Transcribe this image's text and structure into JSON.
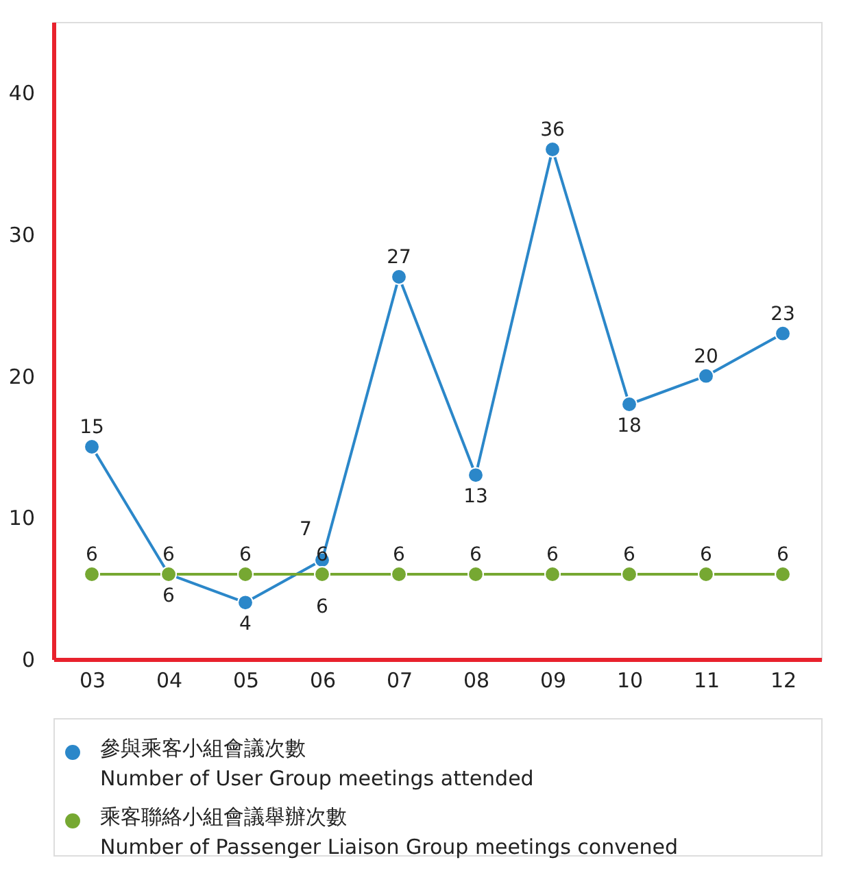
{
  "chart_data": {
    "type": "line",
    "categories": [
      "03",
      "04",
      "05",
      "06",
      "07",
      "08",
      "09",
      "10",
      "11",
      "12"
    ],
    "series": [
      {
        "name": "參與乘客小組會議次數\nNumber of User Group meetings attended",
        "color": "#2b87c9",
        "values": [
          15,
          6,
          4,
          7,
          27,
          13,
          36,
          18,
          20,
          23
        ]
      },
      {
        "name": "乘客聯絡小組會議舉辦次數\nNumber of Passenger Liaison Group meetings convened",
        "color": "#76a832",
        "values": [
          6,
          6,
          6,
          6,
          6,
          6,
          6,
          6,
          6,
          6
        ]
      }
    ],
    "ylim": [
      0,
      45
    ],
    "yticks": [
      0,
      10,
      20,
      30,
      40
    ],
    "grid": false,
    "legend": "bottom",
    "marker": "circle",
    "line_style": "solid",
    "data_labels": true,
    "annotations": [
      {
        "text": "6",
        "x": "06",
        "y": 6
      }
    ]
  }
}
